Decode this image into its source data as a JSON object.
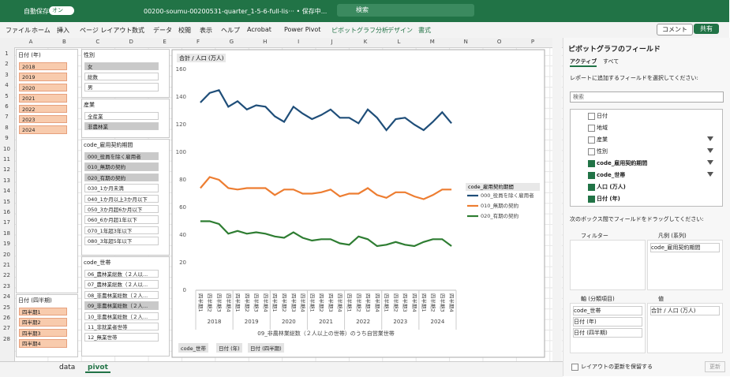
{
  "titlebar": {
    "autosave": "自動保存",
    "toggle": "オン",
    "filename": "00200-soumu-00200531-quarter_1-5-6-full-lis···  • 保存中...",
    "search": "検索"
  },
  "menu": [
    "ファイル",
    "ホーム",
    "挿入",
    "ページ レイアウト",
    "数式",
    "データ",
    "校閲",
    "表示",
    "ヘルプ",
    "Acrobat",
    "Power Pivot",
    "ピボットグラフ分析",
    "デザイン",
    "書式"
  ],
  "menu_right": [
    "コメント",
    "共有"
  ],
  "columns": [
    "A",
    "B",
    "C",
    "D",
    "E",
    "F",
    "G",
    "H",
    "I",
    "J",
    "K",
    "L",
    "M",
    "N",
    "O",
    "P"
  ],
  "rows": [
    1,
    2,
    3,
    4,
    5,
    6,
    7,
    8,
    9,
    10,
    11,
    12,
    13,
    14,
    15,
    16,
    17,
    18,
    19,
    20,
    21,
    22,
    23,
    24,
    25,
    26,
    27,
    28
  ],
  "slicers": [
    {
      "title": "日付 (年)",
      "items": [
        "2018",
        "2019",
        "2020",
        "2021",
        "2022",
        "2023",
        "2024"
      ],
      "selected": [
        0,
        1,
        2,
        3,
        4,
        5,
        6
      ]
    },
    {
      "title": "日付 (四半期)",
      "items": [
        "四半期1",
        "四半期2",
        "四半期3",
        "四半期4"
      ],
      "selected": [
        0,
        1,
        2,
        3
      ]
    },
    {
      "title": "性別",
      "items": [
        "女",
        "総数",
        "男"
      ],
      "selected": [
        0
      ]
    },
    {
      "title": "産業",
      "items": [
        "全産業",
        "非農林業"
      ],
      "selected": [
        1
      ]
    },
    {
      "title": "code_雇用契約期間",
      "items": [
        "000_役員を除く雇用者",
        "010_無期の契約",
        "020_有期の契約",
        "030_1か月未満",
        "040_1か月以上3か月以下",
        "050_3か月超6か月以下",
        "060_6か月超1年以下",
        "070_1年超3年以下",
        "080_3年超5年以下"
      ],
      "selected": [
        0,
        1,
        2
      ]
    },
    {
      "title": "code_世帯",
      "items": [
        "06_農林業総数（２人以...",
        "07_農林業総数（２人以...",
        "08_非農林業総数（２人...",
        "09_非農林業総数（２人...",
        "10_非農林業総数（２人...",
        "11_非就業者世帯",
        "12_無業世帯"
      ],
      "selected": [
        3
      ]
    }
  ],
  "chart_data": {
    "type": "line",
    "title": "合計 / 人口 (万人)",
    "x_title": "09_非農林業総数（２人以上の世帯）のうち自営業世帯",
    "categories": [
      "四半期1",
      "四半期2",
      "四半期3",
      "四半期4",
      "四半期1",
      "四半期2",
      "四半期3",
      "四半期4",
      "四半期1",
      "四半期2",
      "四半期3",
      "四半期4",
      "四半期1",
      "四半期2",
      "四半期3",
      "四半期4",
      "四半期1",
      "四半期2",
      "四半期3",
      "四半期4",
      "四半期1",
      "四半期2",
      "四半期3",
      "四半期4",
      "四半期1",
      "四半期2",
      "四半期3",
      "四半期4"
    ],
    "category_groups": [
      "2018",
      "2019",
      "2020",
      "2021",
      "2022",
      "2023",
      "2024"
    ],
    "legend_title": "code_雇用契約期間",
    "series": [
      {
        "name": "000_役員を除く雇用者",
        "color": "#1f4e79",
        "values": [
          136,
          143,
          145,
          133,
          137,
          131,
          134,
          133,
          126,
          122,
          133,
          128,
          124,
          127,
          131,
          125,
          125,
          121,
          131,
          125,
          116,
          124,
          125,
          120,
          116,
          122,
          129,
          121
        ]
      },
      {
        "name": "010_無期の契約",
        "color": "#ed7d31",
        "values": [
          74,
          82,
          80,
          74,
          73,
          74,
          74,
          74,
          69,
          73,
          73,
          70,
          70,
          71,
          73,
          68,
          70,
          70,
          74,
          69,
          67,
          71,
          71,
          68,
          66,
          69,
          73,
          73
        ]
      },
      {
        "name": "020_有期の契約",
        "color": "#2e7d32",
        "values": [
          50,
          50,
          48,
          41,
          43,
          41,
          42,
          41,
          39,
          38,
          42,
          38,
          36,
          37,
          37,
          34,
          33,
          39,
          37,
          32,
          33,
          35,
          33,
          32,
          35,
          37,
          37,
          32
        ]
      }
    ],
    "ylim": [
      0,
      160
    ],
    "yticks": [
      0,
      20,
      40,
      60,
      80,
      100,
      120,
      140,
      160
    ],
    "grid": false,
    "legend": "right",
    "field_buttons": [
      "code_世帯",
      "日付 (年)",
      "日付 (四半期)"
    ]
  },
  "field_pane": {
    "title": "ピボットグラフのフィールド",
    "tabs": [
      "アクティブ",
      "すべて"
    ],
    "instruction": "レポートに追加するフィールドを選択してください:",
    "search": "検索",
    "fields": [
      "日付",
      "地域",
      "産業",
      "性別",
      "code_雇用契約期間",
      "code_世帯",
      "人口 (万人)",
      "日付 (年)"
    ],
    "checked": [
      4,
      5,
      6,
      7
    ],
    "filtered": [
      2,
      3,
      4,
      5
    ],
    "drag_instruction": "次のボックス間でフィールドをドラッグしてください:",
    "areas": {
      "filter": "フィルター",
      "legend": "凡例 (系列)",
      "axis": "軸 (分類項目)",
      "values": "値"
    },
    "legend_items": [
      "code_雇用契約期間"
    ],
    "axis_items": [
      "code_世帯",
      "日付 (年)",
      "日付 (四半期)"
    ],
    "value_items": [
      "合計 / 人口 (万人)"
    ],
    "defer": "レイアウトの更新を保留する",
    "update": "更新"
  },
  "sheet_tabs": [
    "data",
    "pivot"
  ]
}
